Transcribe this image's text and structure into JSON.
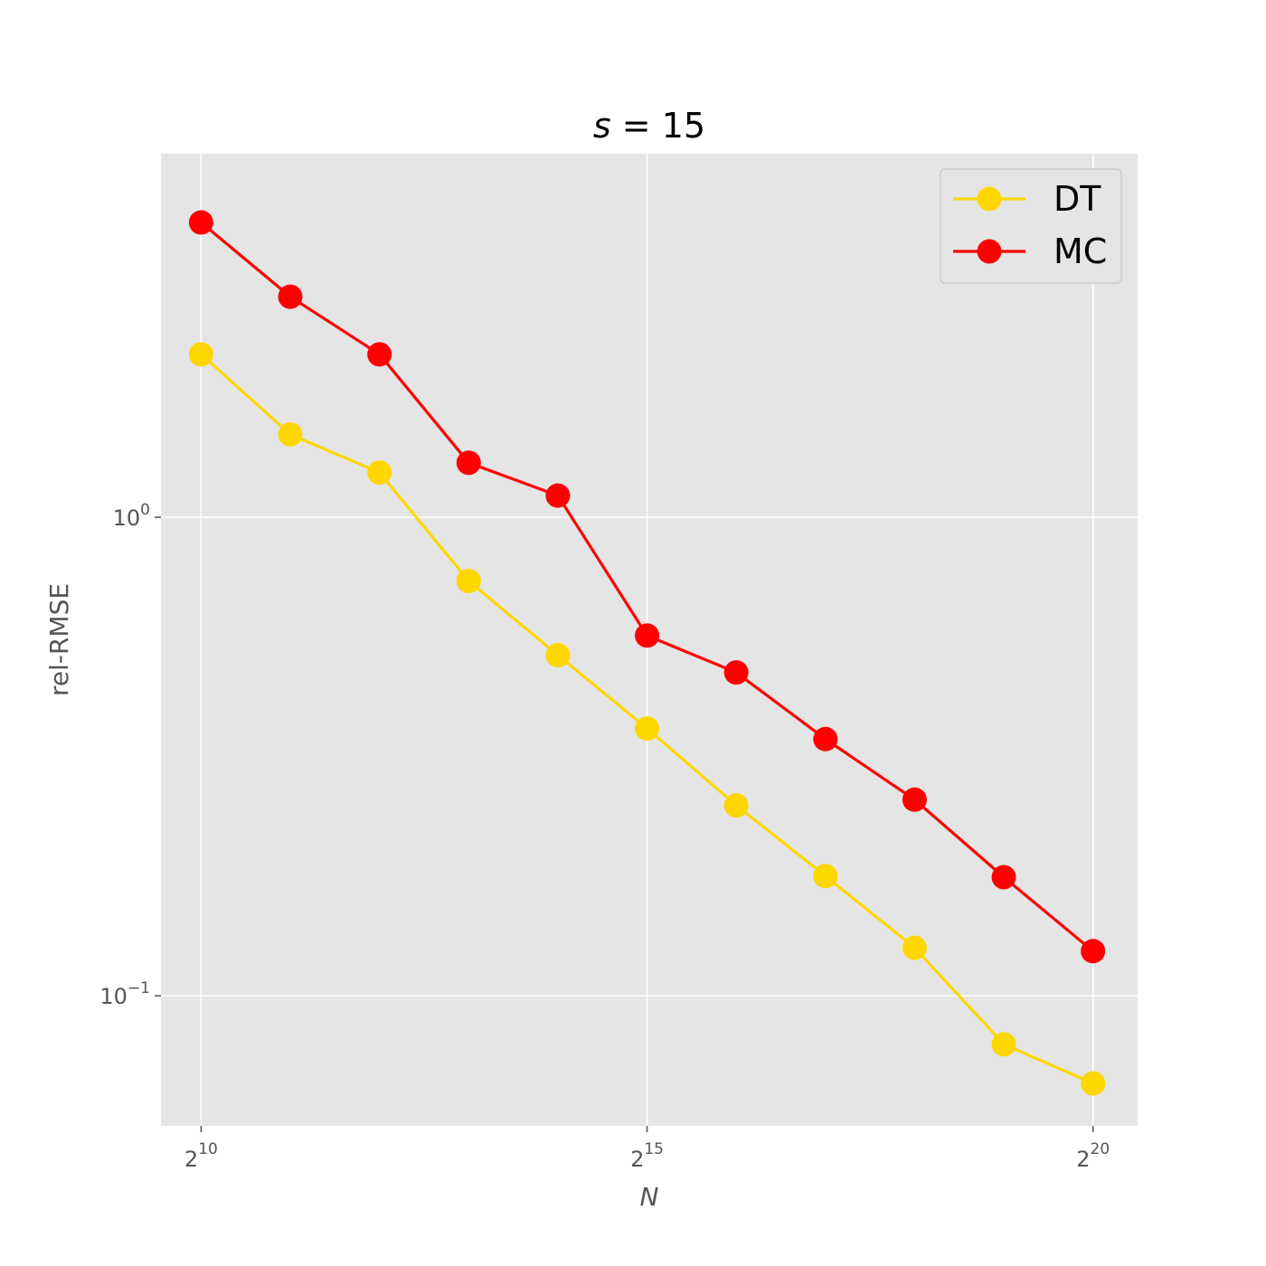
{
  "chart_data": {
    "type": "line",
    "title": {
      "var": "s",
      "eq": " = ",
      "val": "15"
    },
    "xlabel": "N",
    "ylabel": "rel-RMSE",
    "x_scale": "log2",
    "y_scale": "log10",
    "xlim_exp": [
      9.55,
      20.5
    ],
    "ylim": [
      0.0535,
      5.75
    ],
    "grid": true,
    "legend_position": "top-right",
    "x_ticks": [
      {
        "base": "2",
        "exp": "10",
        "value_exp": 10
      },
      {
        "base": "2",
        "exp": "15",
        "value_exp": 15
      },
      {
        "base": "2",
        "exp": "20",
        "value_exp": 20
      }
    ],
    "y_ticks": [
      {
        "base": "10",
        "exp": "0",
        "value": 1
      },
      {
        "base": "10",
        "exp": "−1",
        "value": 0.1
      }
    ],
    "x_exponents": [
      10,
      11,
      12,
      13,
      14,
      15,
      16,
      17,
      18,
      19,
      20
    ],
    "series": [
      {
        "name": "DT",
        "color": "#FFD700",
        "values": [
          2.19,
          1.49,
          1.24,
          0.736,
          0.515,
          0.362,
          0.25,
          0.178,
          0.126,
          0.0792,
          0.0656
        ]
      },
      {
        "name": "MC",
        "color": "#FF0000",
        "values": [
          4.13,
          2.89,
          2.19,
          1.3,
          1.11,
          0.566,
          0.474,
          0.344,
          0.257,
          0.177,
          0.124
        ]
      }
    ]
  }
}
